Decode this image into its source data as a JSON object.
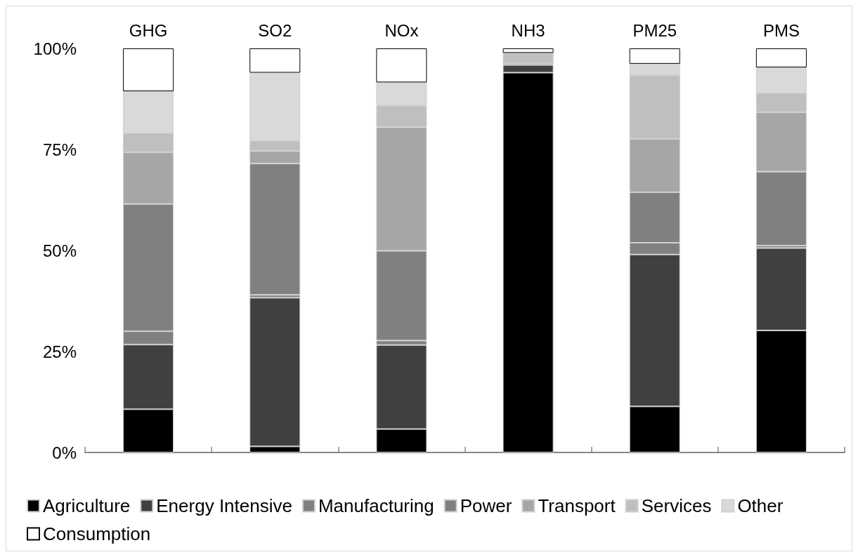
{
  "chart_data": {
    "type": "bar",
    "stacked": true,
    "categories": [
      "GHG",
      "SO2",
      "NOx",
      "NH3",
      "PM25",
      "PMS"
    ],
    "series": [
      {
        "name": "Agriculture",
        "color": "#000000",
        "values": [
          10.7,
          1.5,
          5.8,
          94.0,
          11.4,
          30.2
        ]
      },
      {
        "name": "Energy Intensive",
        "color": "#404040",
        "values": [
          16.0,
          36.8,
          20.8,
          1.9,
          37.6,
          20.4
        ]
      },
      {
        "name": "Manufacturing",
        "color": "#808080",
        "values": [
          3.3,
          0.7,
          1.1,
          null,
          2.9,
          0.6
        ]
      },
      {
        "name": "Power",
        "color": "#808080",
        "values": [
          31.5,
          32.5,
          22.2,
          0.4,
          12.5,
          18.3
        ]
      },
      {
        "name": "Transport",
        "color": "#a6a6a6",
        "values": [
          12.8,
          3.1,
          30.6,
          0,
          13.2,
          14.7
        ]
      },
      {
        "name": "Services",
        "color": "#bfbfbf",
        "values": [
          4.8,
          2.6,
          5.4,
          2.6,
          15.8,
          4.8
        ]
      },
      {
        "name": "Other",
        "color": "#d9d9d9",
        "values": [
          10.3,
          16.8,
          5.7,
          0,
          2.8,
          6.3
        ]
      },
      {
        "name": "Consumption",
        "color": "#ffffff",
        "values": [
          10.6,
          6.0,
          8.4,
          1.1,
          3.8,
          4.7
        ]
      }
    ],
    "ylim": [
      0,
      100
    ],
    "yticks": [
      {
        "value": 0,
        "label": "0%"
      },
      {
        "value": 25,
        "label": "25%"
      },
      {
        "value": 50,
        "label": "50%"
      },
      {
        "value": 75,
        "label": "75%"
      },
      {
        "value": 100,
        "label": "100%"
      }
    ],
    "grid": false,
    "legend": "bottom"
  }
}
